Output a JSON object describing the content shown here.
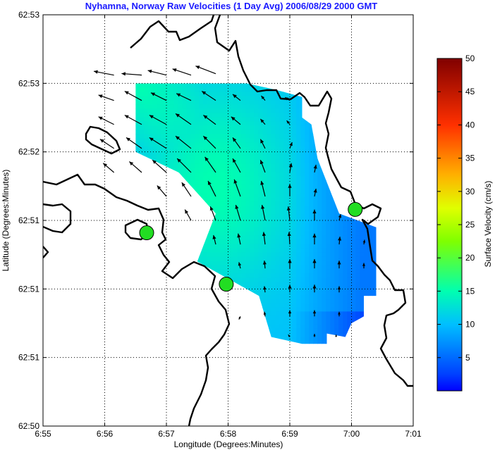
{
  "chart_data": {
    "type": "vector-field-map",
    "title": "Nyhamna, Norway Raw Velocities (1 Day Avg) 2006/08/29 2000 GMT",
    "xlabel": "Longitude (Degrees:Minutes)",
    "ylabel": "Latitude (Degrees:Minutes)",
    "x_ticks": [
      "6:55",
      "6:56",
      "6:57",
      "6:58",
      "6:59",
      "7:00",
      "7:01"
    ],
    "y_ticks": [
      "62:50",
      "62:51",
      "62:51",
      "62:51",
      "62:52",
      "62:53",
      "62:53"
    ],
    "xlim": [
      0,
      6
    ],
    "ylim": [
      0,
      6
    ],
    "grid": "dotted",
    "colorbar": {
      "label": "Surface Velocity (cm/s)",
      "min": 0,
      "max": 50,
      "ticks": [
        5,
        10,
        15,
        20,
        25,
        30,
        35,
        40,
        45,
        50
      ],
      "colormap": "jet"
    },
    "speed_field": {
      "domain_polygon": [
        [
          1.5,
          5.0
        ],
        [
          3.3,
          5.0
        ],
        [
          3.8,
          4.9
        ],
        [
          4.2,
          4.8
        ],
        [
          4.2,
          4.5
        ],
        [
          4.35,
          4.4
        ],
        [
          4.45,
          3.9
        ],
        [
          4.8,
          3.1
        ],
        [
          5.4,
          2.9
        ],
        [
          5.4,
          1.9
        ],
        [
          5.2,
          1.9
        ],
        [
          5.2,
          1.6
        ],
        [
          5.0,
          1.5
        ],
        [
          4.9,
          1.3
        ],
        [
          4.6,
          1.35
        ],
        [
          4.6,
          1.2
        ],
        [
          4.2,
          1.2
        ],
        [
          3.7,
          1.3
        ],
        [
          3.5,
          1.9
        ],
        [
          2.5,
          2.4
        ],
        [
          2.8,
          3.1
        ],
        [
          2.2,
          3.7
        ],
        [
          1.5,
          4.0
        ]
      ],
      "core": [
        2.8,
        3.5
      ],
      "core_speed": 15,
      "east_edge_speed": 3,
      "background_speed": 10
    },
    "stations": [
      {
        "lon": 1.68,
        "lat": 2.82
      },
      {
        "lon": 2.97,
        "lat": 2.07
      },
      {
        "lon": 5.06,
        "lat": 3.16
      }
    ],
    "vectors": [
      {
        "lon": 1.15,
        "lat": 5.12,
        "u": -0.26,
        "v": 0.05
      },
      {
        "lon": 1.6,
        "lat": 5.12,
        "u": -0.26,
        "v": 0.02
      },
      {
        "lon": 2.0,
        "lat": 5.12,
        "u": -0.24,
        "v": 0.06
      },
      {
        "lon": 2.4,
        "lat": 5.12,
        "u": -0.24,
        "v": 0.08
      },
      {
        "lon": 2.8,
        "lat": 5.14,
        "u": -0.26,
        "v": 0.1
      },
      {
        "lon": 1.15,
        "lat": 4.75,
        "u": -0.2,
        "v": 0.07
      },
      {
        "lon": 1.6,
        "lat": 4.75,
        "u": -0.22,
        "v": 0.12
      },
      {
        "lon": 2.0,
        "lat": 4.75,
        "u": -0.2,
        "v": 0.1
      },
      {
        "lon": 2.4,
        "lat": 4.75,
        "u": -0.19,
        "v": 0.09
      },
      {
        "lon": 2.8,
        "lat": 4.75,
        "u": -0.18,
        "v": 0.12
      },
      {
        "lon": 3.2,
        "lat": 4.75,
        "u": -0.1,
        "v": 0.08
      },
      {
        "lon": 3.6,
        "lat": 4.75,
        "u": -0.05,
        "v": 0.06
      },
      {
        "lon": 4.0,
        "lat": 4.75,
        "u": -0.06,
        "v": 0.04
      },
      {
        "lon": 1.15,
        "lat": 4.4,
        "u": -0.2,
        "v": 0.1
      },
      {
        "lon": 1.6,
        "lat": 4.4,
        "u": -0.22,
        "v": 0.12
      },
      {
        "lon": 2.0,
        "lat": 4.4,
        "u": -0.22,
        "v": 0.12
      },
      {
        "lon": 2.4,
        "lat": 4.4,
        "u": -0.2,
        "v": 0.14
      },
      {
        "lon": 2.8,
        "lat": 4.4,
        "u": -0.16,
        "v": 0.12
      },
      {
        "lon": 3.2,
        "lat": 4.4,
        "u": -0.12,
        "v": 0.1
      },
      {
        "lon": 3.6,
        "lat": 4.4,
        "u": -0.06,
        "v": 0.07
      },
      {
        "lon": 4.0,
        "lat": 4.4,
        "u": -0.04,
        "v": 0.05
      },
      {
        "lon": 1.15,
        "lat": 4.05,
        "u": -0.18,
        "v": 0.12
      },
      {
        "lon": 1.6,
        "lat": 4.05,
        "u": -0.2,
        "v": 0.14
      },
      {
        "lon": 2.0,
        "lat": 4.05,
        "u": -0.22,
        "v": 0.14
      },
      {
        "lon": 2.4,
        "lat": 4.05,
        "u": -0.2,
        "v": 0.16
      },
      {
        "lon": 2.8,
        "lat": 4.05,
        "u": -0.16,
        "v": 0.16
      },
      {
        "lon": 3.2,
        "lat": 4.05,
        "u": -0.1,
        "v": 0.14
      },
      {
        "lon": 3.6,
        "lat": 4.05,
        "u": -0.06,
        "v": 0.12
      },
      {
        "lon": 4.0,
        "lat": 4.05,
        "u": 0.03,
        "v": 0.08
      },
      {
        "lon": 1.15,
        "lat": 3.7,
        "u": -0.14,
        "v": 0.12
      },
      {
        "lon": 1.6,
        "lat": 3.7,
        "u": -0.16,
        "v": 0.14
      },
      {
        "lon": 2.0,
        "lat": 3.7,
        "u": -0.18,
        "v": 0.16
      },
      {
        "lon": 2.4,
        "lat": 3.7,
        "u": -0.18,
        "v": 0.18
      },
      {
        "lon": 2.8,
        "lat": 3.7,
        "u": -0.14,
        "v": 0.2
      },
      {
        "lon": 3.2,
        "lat": 3.7,
        "u": -0.1,
        "v": 0.18
      },
      {
        "lon": 3.6,
        "lat": 3.7,
        "u": -0.06,
        "v": 0.16
      },
      {
        "lon": 4.0,
        "lat": 3.7,
        "u": 0.02,
        "v": 0.12
      },
      {
        "lon": 4.4,
        "lat": 3.7,
        "u": 0.02,
        "v": 0.1
      },
      {
        "lon": 2.0,
        "lat": 3.35,
        "u": -0.12,
        "v": 0.14
      },
      {
        "lon": 2.4,
        "lat": 3.35,
        "u": -0.12,
        "v": 0.18
      },
      {
        "lon": 2.8,
        "lat": 3.35,
        "u": -0.1,
        "v": 0.2
      },
      {
        "lon": 3.2,
        "lat": 3.35,
        "u": -0.08,
        "v": 0.22
      },
      {
        "lon": 3.6,
        "lat": 3.35,
        "u": -0.05,
        "v": 0.2
      },
      {
        "lon": 4.0,
        "lat": 3.35,
        "u": 0.0,
        "v": 0.16
      },
      {
        "lon": 4.4,
        "lat": 3.35,
        "u": 0.02,
        "v": 0.1
      },
      {
        "lon": 2.4,
        "lat": 3.0,
        "u": -0.08,
        "v": 0.14
      },
      {
        "lon": 2.8,
        "lat": 3.0,
        "u": -0.07,
        "v": 0.18
      },
      {
        "lon": 3.2,
        "lat": 3.0,
        "u": -0.06,
        "v": 0.2
      },
      {
        "lon": 3.6,
        "lat": 3.0,
        "u": -0.04,
        "v": 0.2
      },
      {
        "lon": 4.0,
        "lat": 3.0,
        "u": -0.02,
        "v": 0.18
      },
      {
        "lon": 4.4,
        "lat": 3.0,
        "u": 0.0,
        "v": 0.14
      },
      {
        "lon": 4.8,
        "lat": 3.0,
        "u": 0.02,
        "v": 0.08
      },
      {
        "lon": 2.8,
        "lat": 2.65,
        "u": -0.03,
        "v": 0.12
      },
      {
        "lon": 3.2,
        "lat": 2.65,
        "u": -0.03,
        "v": 0.14
      },
      {
        "lon": 3.6,
        "lat": 2.65,
        "u": -0.02,
        "v": 0.16
      },
      {
        "lon": 4.0,
        "lat": 2.65,
        "u": -0.01,
        "v": 0.16
      },
      {
        "lon": 4.4,
        "lat": 2.65,
        "u": 0.0,
        "v": 0.14
      },
      {
        "lon": 4.8,
        "lat": 2.65,
        "u": 0.01,
        "v": 0.1
      },
      {
        "lon": 5.2,
        "lat": 2.65,
        "u": 0.01,
        "v": 0.06
      },
      {
        "lon": 3.2,
        "lat": 2.3,
        "u": -0.02,
        "v": 0.08
      },
      {
        "lon": 3.6,
        "lat": 2.3,
        "u": -0.01,
        "v": 0.1
      },
      {
        "lon": 4.0,
        "lat": 2.3,
        "u": 0.0,
        "v": 0.12
      },
      {
        "lon": 4.4,
        "lat": 2.3,
        "u": 0.0,
        "v": 0.12
      },
      {
        "lon": 4.8,
        "lat": 2.3,
        "u": 0.0,
        "v": 0.1
      },
      {
        "lon": 5.2,
        "lat": 2.3,
        "u": 0.0,
        "v": 0.07
      },
      {
        "lon": 3.6,
        "lat": 1.95,
        "u": -0.01,
        "v": 0.08
      },
      {
        "lon": 4.0,
        "lat": 1.95,
        "u": 0.0,
        "v": 0.1
      },
      {
        "lon": 4.4,
        "lat": 1.95,
        "u": 0.0,
        "v": 0.1
      },
      {
        "lon": 4.8,
        "lat": 1.95,
        "u": 0.0,
        "v": 0.08
      },
      {
        "lon": 3.2,
        "lat": 1.6,
        "u": -0.02,
        "v": -0.04
      },
      {
        "lon": 3.6,
        "lat": 1.6,
        "u": -0.01,
        "v": 0.06
      },
      {
        "lon": 4.0,
        "lat": 1.6,
        "u": 0.0,
        "v": 0.08
      },
      {
        "lon": 4.4,
        "lat": 1.6,
        "u": 0.0,
        "v": 0.08
      },
      {
        "lon": 4.8,
        "lat": 1.6,
        "u": 0.0,
        "v": 0.06
      },
      {
        "lon": 4.0,
        "lat": 1.3,
        "u": -0.02,
        "v": 0.03
      },
      {
        "lon": 4.4,
        "lat": 1.3,
        "u": 0.0,
        "v": 0.04
      },
      {
        "lon": 4.75,
        "lat": 1.3,
        "u": 0.0,
        "v": 0.03
      }
    ]
  }
}
